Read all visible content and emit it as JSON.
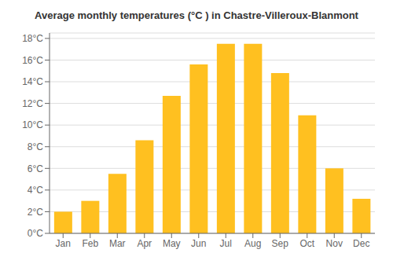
{
  "chart_data": {
    "type": "bar",
    "title": "Average monthly temperatures (°C ) in Chastre-Villeroux-Blanmont",
    "categories": [
      "Jan",
      "Feb",
      "Mar",
      "Apr",
      "May",
      "Jun",
      "Jul",
      "Aug",
      "Sep",
      "Oct",
      "Nov",
      "Dec"
    ],
    "values": [
      2.0,
      3.0,
      5.5,
      8.6,
      12.7,
      15.6,
      17.5,
      17.5,
      14.8,
      10.9,
      6.0,
      3.2
    ],
    "color": "#FFC020",
    "ylim": [
      0,
      18.5
    ],
    "yticks": [
      {
        "value": 0,
        "label": "0°C"
      },
      {
        "value": 2,
        "label": "2°C"
      },
      {
        "value": 4,
        "label": "4°C"
      },
      {
        "value": 6,
        "label": "6°C"
      },
      {
        "value": 8,
        "label": "8°C"
      },
      {
        "value": 10,
        "label": "10°C"
      },
      {
        "value": 12,
        "label": "12°C"
      },
      {
        "value": 14,
        "label": "14°C"
      },
      {
        "value": 16,
        "label": "16°C"
      },
      {
        "value": 18,
        "label": "18°C"
      }
    ],
    "grid": true
  }
}
